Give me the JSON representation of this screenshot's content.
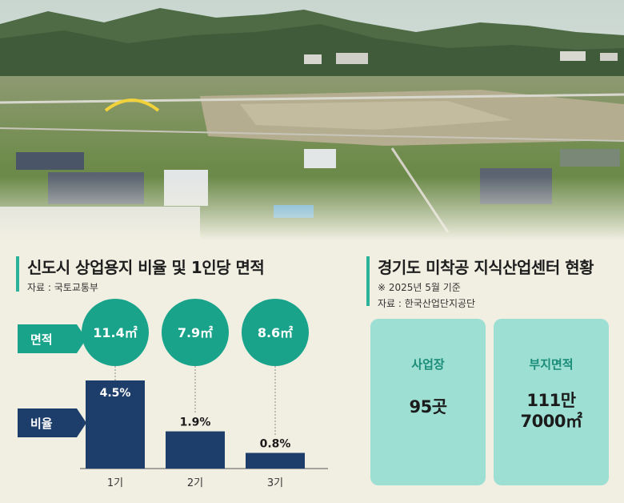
{
  "left_panel": {
    "title": "신도시 상업용지 비율 및 1인당 면적",
    "source": "자료 : 국토교통부",
    "area_tag": "면적",
    "ratio_tag": "비율"
  },
  "chart_data": {
    "type": "bar",
    "title": "신도시 상업용지 비율 및 1인당 면적",
    "categories": [
      "1기",
      "2기",
      "3기"
    ],
    "series": [
      {
        "name": "비율",
        "values": [
          4.5,
          1.9,
          0.8
        ],
        "labels": [
          "4.5%",
          "1.9%",
          "0.8%"
        ]
      },
      {
        "name": "면적",
        "values": [
          11.4,
          7.9,
          8.6
        ],
        "labels": [
          "11.4㎡",
          "7.9㎡",
          "8.6㎡"
        ]
      }
    ],
    "ylim": [
      0,
      4.5
    ],
    "grid": false,
    "colors": {
      "bar": "#1d3d6b",
      "circle": "#1aa38b"
    }
  },
  "right_panel": {
    "title": "경기도 미착공 지식산업센터 현황",
    "note": "※ 2025년 5월 기준",
    "source": "자료 : 한국산업단지공단",
    "cards": [
      {
        "label": "사업장",
        "value_line1": "95곳",
        "value_line2": ""
      },
      {
        "label": "부지면적",
        "value_line1": "111만",
        "value_line2": "7000㎡"
      }
    ]
  },
  "photo": {
    "subject": "aerial-landscape-photo"
  }
}
